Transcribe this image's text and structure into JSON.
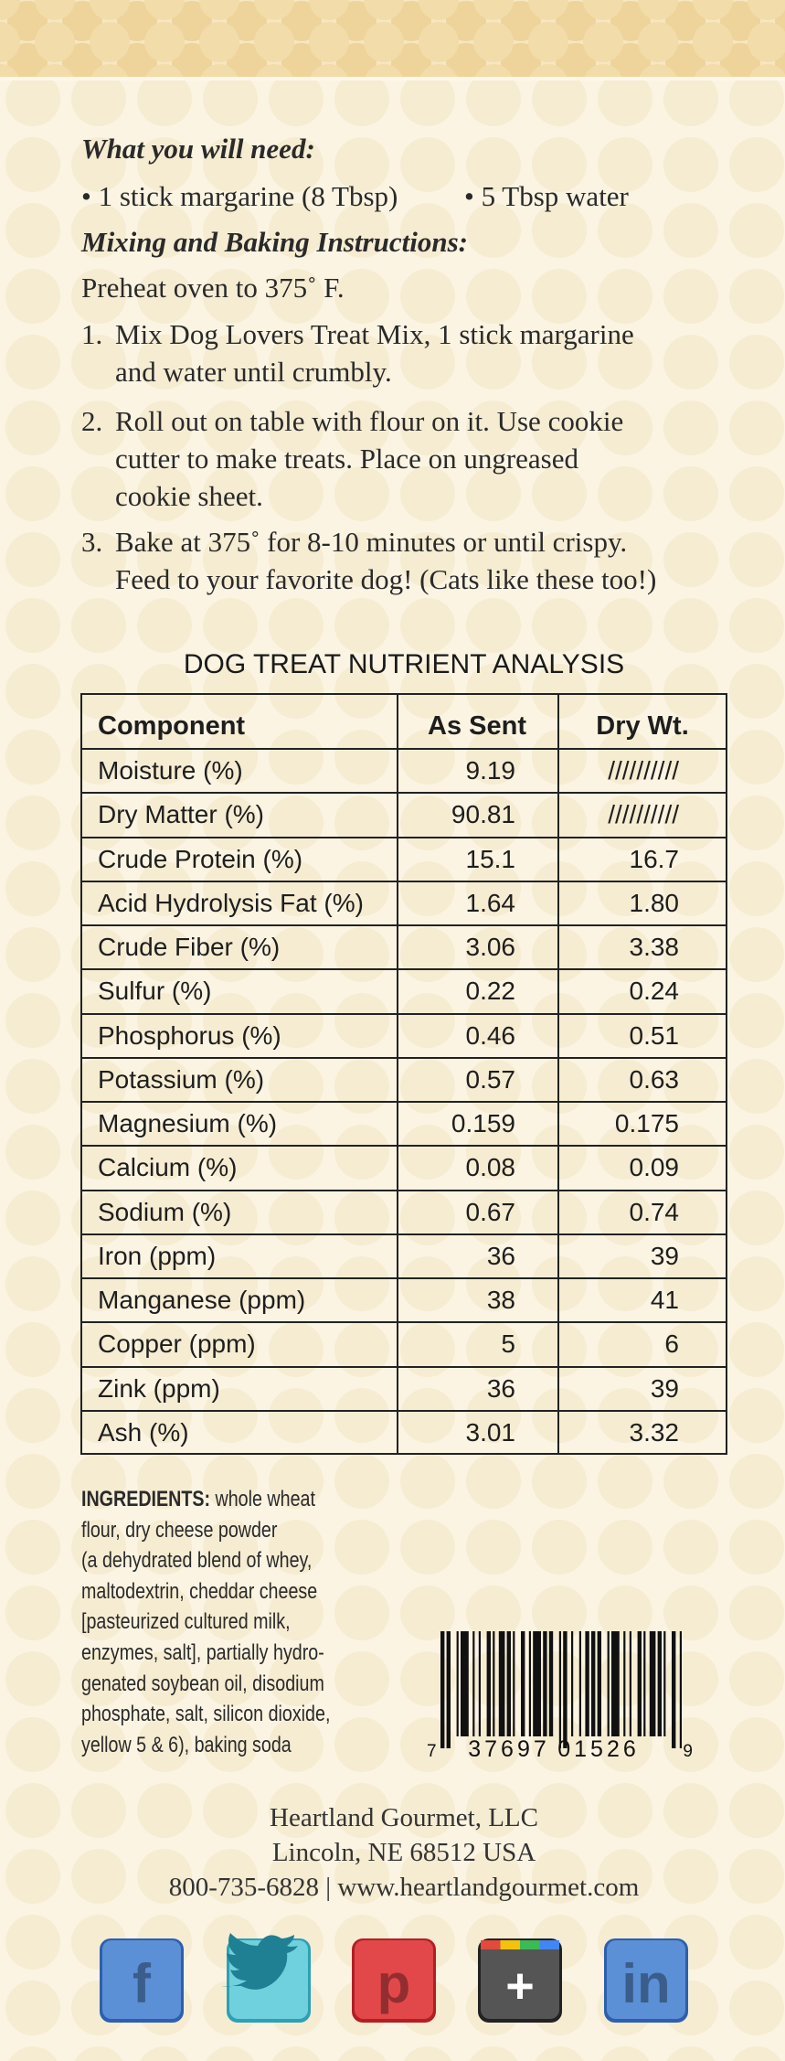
{
  "recipe": {
    "need_heading": "What you will need:",
    "need_items": [
      "• 1 stick margarine (8 Tbsp)",
      "• 5 Tbsp water"
    ],
    "instructions_heading": "Mixing and Baking Instructions:",
    "preheat": "Preheat oven to 375˚ F.",
    "steps": [
      {
        "number": "1.",
        "lines": [
          "Mix Dog Lovers Treat Mix, 1 stick margarine",
          "and water until crumbly."
        ]
      },
      {
        "number": "2.",
        "lines": [
          "Roll out on table with flour on it. Use cookie",
          "cutter to make treats. Place on ungreased",
          "cookie sheet."
        ]
      },
      {
        "number": "3.",
        "lines": [
          "Bake at 375˚ for 8-10 minutes or until crispy.",
          "Feed to your favorite dog! (Cats like these too!)"
        ]
      }
    ]
  },
  "table": {
    "title": "DOG TREAT NUTRIENT ANALYSIS",
    "header": [
      "Component",
      "As Sent",
      "Dry Wt."
    ],
    "rows": [
      [
        "Moisture (%)",
        "9.19",
        "//////////"
      ],
      [
        "Dry Matter (%)",
        "90.81",
        "//////////"
      ],
      [
        "Crude Protein (%)",
        "15.1",
        "16.7"
      ],
      [
        "Acid Hydrolysis Fat (%)",
        "1.64",
        "1.80"
      ],
      [
        "Crude Fiber (%)",
        "3.06",
        "3.38"
      ],
      [
        "Sulfur (%)",
        "0.22",
        "0.24"
      ],
      [
        "Phosphorus (%)",
        "0.46",
        "0.51"
      ],
      [
        "Potassium (%)",
        "0.57",
        "0.63"
      ],
      [
        "Magnesium (%)",
        "0.159",
        "0.175"
      ],
      [
        "Calcium (%)",
        "0.08",
        "0.09"
      ],
      [
        "Sodium (%)",
        "0.67",
        "0.74"
      ],
      [
        "Iron (ppm)",
        "36",
        "39"
      ],
      [
        "Manganese (ppm)",
        "38",
        "41"
      ],
      [
        "Copper (ppm)",
        "5",
        "6"
      ],
      [
        "Zink (ppm)",
        "36",
        "39"
      ],
      [
        "Ash (%)",
        "3.01",
        "3.32"
      ]
    ]
  },
  "ingredients": {
    "label": "INGREDIENTS:",
    "lines": [
      " whole wheat",
      "flour, dry cheese powder",
      "(a dehydrated blend of whey,",
      "maltodextrin, cheddar cheese",
      "[pasteurized cultured milk,",
      "enzymes, salt], partially hydro-",
      "genated soybean oil, disodium",
      "phosphate, salt, silicon dioxide,",
      "yellow 5 & 6), baking soda"
    ]
  },
  "barcode": {
    "digits": [
      "7",
      "37697",
      "01526",
      "9"
    ]
  },
  "footer": {
    "lines": [
      "Heartland Gourmet, LLC",
      "Lincoln, NE 68512  USA",
      "800-735-6828  |  www.heartlandgourmet.com"
    ]
  },
  "social": {
    "glyphs": [
      "f",
      "p",
      "+",
      "in"
    ]
  }
}
